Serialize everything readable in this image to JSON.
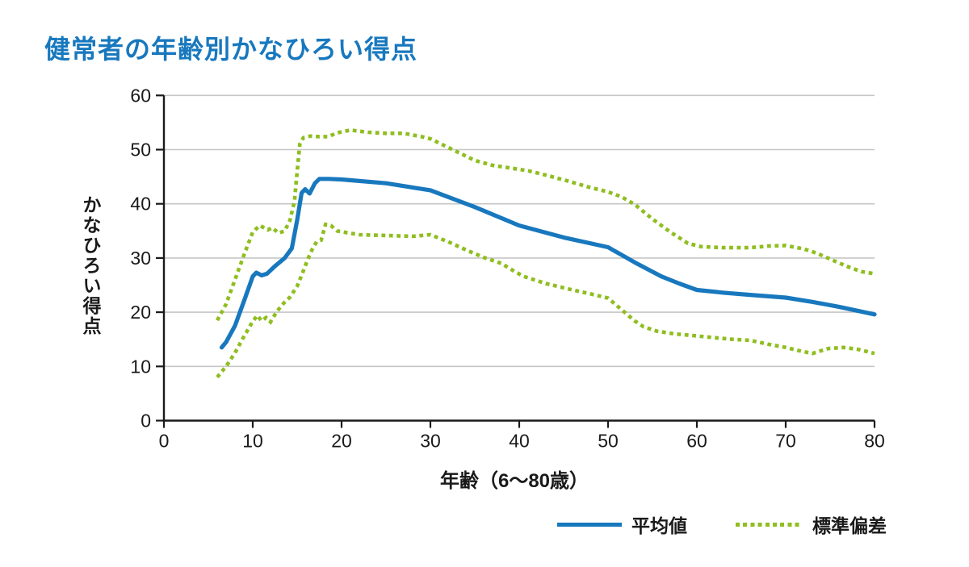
{
  "page": {
    "title": "健常者の年齢別かなひろい得点"
  },
  "colors": {
    "accent_blue": "#1878be",
    "accent_green": "#8fbe20",
    "grid": "#c6c6c6",
    "axis": "#1a1a1a",
    "text": "#1a1a1a",
    "background": "#ffffff"
  },
  "legend": {
    "mean_label": "平均値",
    "sd_label": "標準偏差"
  },
  "chart_data": {
    "type": "line",
    "title": "健常者の年齢別かなひろい得点",
    "xlabel": "年齢（6〜80歳）",
    "ylabel": "かなひろい得点",
    "xlim": [
      0,
      80
    ],
    "ylim": [
      0,
      60
    ],
    "xticks": [
      0,
      10,
      20,
      30,
      40,
      50,
      60,
      70,
      80
    ],
    "yticks": [
      0,
      10,
      20,
      30,
      40,
      50,
      60
    ],
    "grid": "horizontal",
    "legend_position": "bottom-right",
    "series": [
      {
        "name": "mean",
        "legend_label": "平均値",
        "style": "solid",
        "color": "#1878be",
        "points": [
          [
            6.5,
            13.5
          ],
          [
            7,
            14.5
          ],
          [
            8,
            17.5
          ],
          [
            9,
            22
          ],
          [
            10,
            26.6
          ],
          [
            10.4,
            27.3
          ],
          [
            11,
            26.8
          ],
          [
            11.6,
            27.1
          ],
          [
            12.5,
            28.5
          ],
          [
            13.6,
            30
          ],
          [
            14.4,
            31.8
          ],
          [
            15,
            37
          ],
          [
            15.5,
            42
          ],
          [
            15.9,
            42.7
          ],
          [
            16.4,
            41.9
          ],
          [
            17,
            43.8
          ],
          [
            17.5,
            44.6
          ],
          [
            18.5,
            44.6
          ],
          [
            20,
            44.5
          ],
          [
            25,
            43.8
          ],
          [
            30,
            42.5
          ],
          [
            35,
            39.4
          ],
          [
            40,
            36
          ],
          [
            45,
            33.8
          ],
          [
            50,
            32
          ],
          [
            53,
            29.2
          ],
          [
            56,
            26.6
          ],
          [
            58,
            25.3
          ],
          [
            60,
            24.1
          ],
          [
            63,
            23.6
          ],
          [
            66,
            23.2
          ],
          [
            70,
            22.7
          ],
          [
            73,
            21.9
          ],
          [
            76,
            21
          ],
          [
            80,
            19.6
          ]
        ]
      },
      {
        "name": "sd_upper",
        "legend_label": "標準偏差",
        "style": "dotted",
        "color": "#8fbe20",
        "points": [
          [
            6,
            18.5
          ],
          [
            7,
            21.5
          ],
          [
            8,
            26
          ],
          [
            9,
            30.5
          ],
          [
            10,
            34.8
          ],
          [
            10.8,
            36
          ],
          [
            11.7,
            35.2
          ],
          [
            12.2,
            35.6
          ],
          [
            12.9,
            34.6
          ],
          [
            13.6,
            35
          ],
          [
            14.2,
            37
          ],
          [
            14.7,
            40.5
          ],
          [
            15,
            46
          ],
          [
            15.3,
            51
          ],
          [
            15.7,
            52.2
          ],
          [
            16.5,
            52.5
          ],
          [
            17.5,
            52.4
          ],
          [
            18.5,
            52.4
          ],
          [
            19.5,
            53.1
          ],
          [
            21,
            53.6
          ],
          [
            23,
            53.2
          ],
          [
            25,
            53
          ],
          [
            27,
            53
          ],
          [
            29,
            52.4
          ],
          [
            30,
            52
          ],
          [
            32,
            50.4
          ],
          [
            35,
            48
          ],
          [
            37,
            47.1
          ],
          [
            39,
            46.6
          ],
          [
            41,
            46.1
          ],
          [
            43,
            45.3
          ],
          [
            45.5,
            44.2
          ],
          [
            48,
            43
          ],
          [
            50,
            42.2
          ],
          [
            51.5,
            41.3
          ],
          [
            53,
            39.9
          ],
          [
            55,
            37.2
          ],
          [
            57,
            34.8
          ],
          [
            59,
            32.7
          ],
          [
            60.5,
            32.1
          ],
          [
            63,
            31.9
          ],
          [
            66,
            31.9
          ],
          [
            68,
            32.2
          ],
          [
            70,
            32.3
          ],
          [
            72,
            31.7
          ],
          [
            73.5,
            30.9
          ],
          [
            75,
            29.8
          ],
          [
            77,
            28.4
          ],
          [
            78.5,
            27.5
          ],
          [
            80,
            27.1
          ]
        ]
      },
      {
        "name": "sd_lower",
        "legend_label": "標準偏差",
        "style": "dotted",
        "color": "#8fbe20",
        "points": [
          [
            6,
            8
          ],
          [
            7,
            10
          ],
          [
            8,
            12.5
          ],
          [
            9,
            15.5
          ],
          [
            10,
            18.3
          ],
          [
            10.5,
            19.4
          ],
          [
            11,
            18.4
          ],
          [
            11.5,
            19
          ],
          [
            12,
            18.2
          ],
          [
            12.7,
            20.1
          ],
          [
            13.5,
            21.7
          ],
          [
            14.2,
            22.8
          ],
          [
            15,
            24.8
          ],
          [
            15.6,
            27.2
          ],
          [
            16.2,
            29.8
          ],
          [
            16.7,
            31.6
          ],
          [
            17.2,
            33
          ],
          [
            17.7,
            33.3
          ],
          [
            18.2,
            36.2
          ],
          [
            18.8,
            36
          ],
          [
            19.5,
            35
          ],
          [
            20.5,
            34.7
          ],
          [
            22,
            34.3
          ],
          [
            24,
            34.2
          ],
          [
            26,
            34.1
          ],
          [
            28,
            34
          ],
          [
            30,
            34.3
          ],
          [
            32,
            33
          ],
          [
            34,
            31.5
          ],
          [
            36,
            30.1
          ],
          [
            38,
            29
          ],
          [
            39.5,
            27.5
          ],
          [
            40.5,
            26.6
          ],
          [
            43,
            25.3
          ],
          [
            45.5,
            24.3
          ],
          [
            48,
            23.4
          ],
          [
            50,
            22.6
          ],
          [
            51,
            21.2
          ],
          [
            52,
            19.8
          ],
          [
            53,
            18.4
          ],
          [
            54,
            17.3
          ],
          [
            55.5,
            16.5
          ],
          [
            57.5,
            16
          ],
          [
            59.5,
            15.7
          ],
          [
            62,
            15.3
          ],
          [
            64,
            15
          ],
          [
            66,
            14.8
          ],
          [
            68,
            14.1
          ],
          [
            70,
            13.5
          ],
          [
            71.5,
            12.9
          ],
          [
            73,
            12.4
          ],
          [
            74.8,
            13.3
          ],
          [
            76.5,
            13.5
          ],
          [
            78,
            13.2
          ],
          [
            80,
            12.4
          ]
        ]
      }
    ]
  }
}
